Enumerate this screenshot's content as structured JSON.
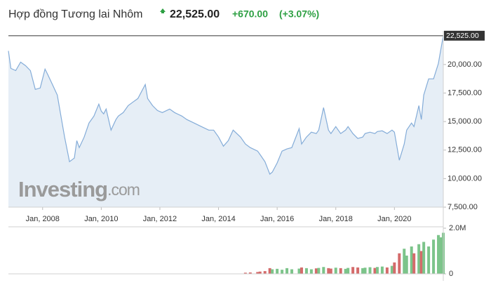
{
  "header": {
    "title": "Hợp đồng Tương lai Nhôm",
    "change": "+670.00",
    "change_pct": "(+3.07%)"
  },
  "chart_data": {
    "type": "area",
    "x": [
      "2006-11",
      "2006-12",
      "2007-02",
      "2007-04",
      "2007-06",
      "2007-08",
      "2007-10",
      "2007-12",
      "2008-02",
      "2008-03",
      "2008-05",
      "2008-07",
      "2008-09",
      "2008-10",
      "2008-12",
      "2009-02",
      "2009-03",
      "2009-04",
      "2009-06",
      "2009-08",
      "2009-10",
      "2009-12",
      "2010-01",
      "2010-02",
      "2010-03",
      "2010-05",
      "2010-07",
      "2010-08",
      "2010-10",
      "2010-12",
      "2011-02",
      "2011-04",
      "2011-07",
      "2011-08",
      "2011-10",
      "2011-12",
      "2012-02",
      "2012-05",
      "2012-07",
      "2012-10",
      "2012-12",
      "2013-03",
      "2013-06",
      "2013-09",
      "2013-11",
      "2014-01",
      "2014-03",
      "2014-05",
      "2014-07",
      "2014-10",
      "2014-12",
      "2015-02",
      "2015-05",
      "2015-06",
      "2015-08",
      "2015-10",
      "2015-11",
      "2016-01",
      "2016-03",
      "2016-05",
      "2016-07",
      "2016-10",
      "2016-11",
      "2017-01",
      "2017-03",
      "2017-05",
      "2017-06",
      "2017-08",
      "2017-10",
      "2017-11",
      "2018-01",
      "2018-03",
      "2018-05",
      "2018-06",
      "2018-08",
      "2018-10",
      "2018-12",
      "2019-01",
      "2019-03",
      "2019-05",
      "2019-06",
      "2019-08",
      "2019-10",
      "2019-12",
      "2020-01",
      "2020-03",
      "2020-05",
      "2020-06",
      "2020-08",
      "2020-09",
      "2020-11",
      "2020-12",
      "2021-01",
      "2021-03",
      "2021-05",
      "2021-07",
      "2021-08",
      "2021-09"
    ],
    "xlim": [
      "2006-11",
      "2021-09"
    ],
    "xticks": [
      {
        "value": "2008-01",
        "label": "Jan, 2008"
      },
      {
        "value": "2010-01",
        "label": "Jan, 2010"
      },
      {
        "value": "2012-01",
        "label": "Jan, 2012"
      },
      {
        "value": "2014-01",
        "label": "Jan, 2014"
      },
      {
        "value": "2016-01",
        "label": "Jan, 2016"
      },
      {
        "value": "2018-01",
        "label": "Jan, 2018"
      },
      {
        "value": "2020-01",
        "label": "Jan, 2020"
      }
    ],
    "series": [
      {
        "color": "#84acd8",
        "fill": "#e6eef6",
        "values": [
          21190,
          19660,
          19470,
          20210,
          19900,
          19470,
          17820,
          17940,
          19600,
          19170,
          18250,
          17320,
          14870,
          13640,
          11490,
          11800,
          13330,
          12720,
          13640,
          14870,
          15480,
          16530,
          15910,
          15670,
          16100,
          14250,
          15180,
          15480,
          15790,
          16400,
          16710,
          17020,
          18250,
          17020,
          16400,
          15970,
          15790,
          16100,
          15790,
          15480,
          15180,
          14870,
          14560,
          14250,
          14250,
          13640,
          12840,
          13330,
          14250,
          13640,
          13030,
          12720,
          12410,
          12110,
          11490,
          10390,
          10570,
          11370,
          12410,
          12600,
          12720,
          14380,
          13030,
          13640,
          14070,
          13950,
          14250,
          16220,
          14250,
          13950,
          14560,
          13950,
          14250,
          14560,
          13950,
          13520,
          13640,
          13950,
          14070,
          13950,
          14130,
          14190,
          13950,
          14250,
          14070,
          11610,
          13030,
          14250,
          14870,
          14560,
          16400,
          15180,
          17320,
          18740,
          18740,
          20090,
          21320,
          22525
        ]
      }
    ],
    "ylim": [
      7500,
      22700
    ],
    "yticks": [
      {
        "value": 7500,
        "label": "7,500.00"
      },
      {
        "value": 10000,
        "label": "10,000.00"
      },
      {
        "value": 12500,
        "label": "12,500.00"
      },
      {
        "value": 15000,
        "label": "15,000.00"
      },
      {
        "value": 17500,
        "label": "17,500.00"
      },
      {
        "value": 20000,
        "label": "20,000.00"
      }
    ],
    "last_price": {
      "value": 22525,
      "label": "22,525.00"
    },
    "last_price_color": "#333333",
    "watermark": [
      "Investing",
      ".com"
    ],
    "volume": {
      "type": "bar",
      "values": [
        0,
        0,
        0,
        0,
        0,
        0,
        0,
        0,
        0,
        0,
        0,
        0,
        0,
        0,
        0,
        0,
        0,
        0,
        0,
        0,
        0,
        0,
        0,
        0,
        0,
        0,
        0,
        0,
        0,
        0,
        0,
        0,
        0,
        0,
        0,
        0,
        0,
        0,
        0,
        0,
        0,
        0,
        0,
        0,
        0,
        0,
        0,
        0,
        0,
        0,
        50000,
        60000,
        80000,
        100000,
        120000,
        250000,
        200000,
        220000,
        180000,
        250000,
        200000,
        230000,
        280000,
        250000,
        200000,
        240000,
        260000,
        300000,
        250000,
        230000,
        270000,
        250000,
        220000,
        260000,
        300000,
        280000,
        250000,
        270000,
        290000,
        260000,
        300000,
        320000,
        280000,
        350000,
        500000,
        900000,
        1100000,
        800000,
        1200000,
        900000,
        1300000,
        1000000,
        1400000,
        1200000,
        1500000,
        1700000,
        1600000,
        1800000
      ],
      "ylim": [
        0,
        2000000
      ],
      "yticks": [
        {
          "value": 2000000,
          "label": "2.0M"
        },
        0
      ],
      "up_color": "#7cc48a",
      "down_color": "#d46b6b"
    }
  }
}
